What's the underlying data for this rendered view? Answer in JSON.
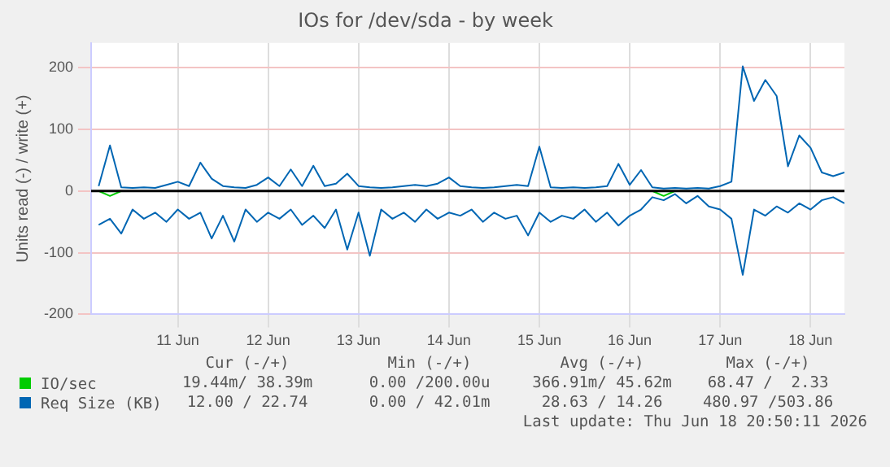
{
  "chart_data": {
    "type": "line",
    "title": "IOs for /dev/sda - by week",
    "ylabel": "Units read (-) / write (+)",
    "x": [
      "2026-06-10T15:00",
      "2026-06-10T18:00",
      "2026-06-10T21:00",
      "2026-06-11T00:00",
      "2026-06-11T03:00",
      "2026-06-11T06:00",
      "2026-06-11T09:00",
      "2026-06-11T12:00",
      "2026-06-11T15:00",
      "2026-06-11T18:00",
      "2026-06-11T21:00",
      "2026-06-12T00:00",
      "2026-06-12T03:00",
      "2026-06-12T06:00",
      "2026-06-12T09:00",
      "2026-06-12T12:00",
      "2026-06-12T15:00",
      "2026-06-12T18:00",
      "2026-06-12T21:00",
      "2026-06-13T00:00",
      "2026-06-13T03:00",
      "2026-06-13T06:00",
      "2026-06-13T09:00",
      "2026-06-13T12:00",
      "2026-06-13T15:00",
      "2026-06-13T18:00",
      "2026-06-13T21:00",
      "2026-06-14T00:00",
      "2026-06-14T03:00",
      "2026-06-14T06:00",
      "2026-06-14T09:00",
      "2026-06-14T12:00",
      "2026-06-14T15:00",
      "2026-06-14T18:00",
      "2026-06-14T21:00",
      "2026-06-15T00:00",
      "2026-06-15T03:00",
      "2026-06-15T06:00",
      "2026-06-15T09:00",
      "2026-06-15T12:00",
      "2026-06-15T15:00",
      "2026-06-15T18:00",
      "2026-06-15T21:00",
      "2026-06-16T00:00",
      "2026-06-16T03:00",
      "2026-06-16T06:00",
      "2026-06-16T09:00",
      "2026-06-16T12:00",
      "2026-06-16T15:00",
      "2026-06-16T18:00",
      "2026-06-16T21:00",
      "2026-06-17T00:00",
      "2026-06-17T03:00",
      "2026-06-17T06:00",
      "2026-06-17T09:00",
      "2026-06-17T12:00",
      "2026-06-17T15:00",
      "2026-06-17T18:00",
      "2026-06-17T21:00",
      "2026-06-18T00:00",
      "2026-06-18T03:00",
      "2026-06-18T06:00",
      "2026-06-18T09:00",
      "2026-06-18T12:00",
      "2026-06-18T15:00",
      "2026-06-18T18:00",
      "2026-06-18T21:00"
    ],
    "series": [
      {
        "name": "IO/sec",
        "color": "#00cc00",
        "values": [
          0,
          -8,
          0,
          null,
          null,
          null,
          null,
          null,
          null,
          null,
          null,
          null,
          null,
          null,
          null,
          null,
          null,
          null,
          null,
          null,
          null,
          null,
          null,
          null,
          null,
          null,
          null,
          null,
          null,
          null,
          null,
          null,
          null,
          null,
          null,
          null,
          null,
          null,
          null,
          null,
          null,
          null,
          null,
          null,
          null,
          null,
          null,
          null,
          null,
          0,
          -8,
          0,
          null,
          null,
          null,
          null,
          null,
          null,
          null,
          null,
          null,
          null,
          null,
          null,
          null,
          null,
          null
        ]
      },
      {
        "name": "Req Size (KB)",
        "color": "#0066b3",
        "values": [
          -55,
          -45,
          -69,
          -30,
          -45,
          -35,
          -50,
          -30,
          -45,
          -35,
          -77,
          -40,
          -82,
          -30,
          -50,
          -35,
          -45,
          -30,
          -55,
          -40,
          -60,
          -30,
          -95,
          -35,
          -105,
          -30,
          -45,
          -35,
          -50,
          -30,
          -45,
          -35,
          -40,
          -30,
          -50,
          -35,
          -45,
          -40,
          -72,
          -35,
          -50,
          -40,
          -45,
          -30,
          -50,
          -35,
          -56,
          -40,
          -30,
          -10,
          -15,
          -5,
          -20,
          -8,
          -25,
          -30,
          -45,
          -136,
          -30,
          -40,
          -25,
          -35,
          -20,
          -30,
          -15,
          -10,
          -20
        ]
      },
      {
        "color": "#0066b3",
        "values": [
          8,
          74,
          6,
          5,
          6,
          5,
          10,
          15,
          8,
          46,
          20,
          8,
          6,
          5,
          10,
          22,
          8,
          35,
          8,
          41,
          8,
          12,
          28,
          8,
          6,
          5,
          6,
          8,
          10,
          8,
          12,
          22,
          8,
          6,
          5,
          6,
          8,
          10,
          8,
          72,
          6,
          5,
          6,
          5,
          6,
          8,
          44,
          10,
          34,
          6,
          4,
          5,
          4,
          5,
          4,
          8,
          15,
          202,
          146,
          180,
          154,
          40,
          90,
          70,
          30,
          24,
          30
        ]
      }
    ],
    "xlim": [
      "2026-06-10T13:00",
      "2026-06-18T21:00"
    ],
    "xticks": [
      {
        "value": "2026-06-11T12:00",
        "label": "11 Jun"
      },
      {
        "value": "2026-06-12T12:00",
        "label": "12 Jun"
      },
      {
        "value": "2026-06-13T12:00",
        "label": "13 Jun"
      },
      {
        "value": "2026-06-14T12:00",
        "label": "14 Jun"
      },
      {
        "value": "2026-06-15T12:00",
        "label": "15 Jun"
      },
      {
        "value": "2026-06-16T12:00",
        "label": "16 Jun"
      },
      {
        "value": "2026-06-17T12:00",
        "label": "17 Jun"
      },
      {
        "value": "2026-06-18T12:00",
        "label": "18 Jun"
      }
    ],
    "ylim": [
      -200,
      240
    ],
    "yticks": [
      -200,
      -100,
      0,
      100,
      200
    ],
    "ref_lines": [
      {
        "axis": "y",
        "value": 0,
        "color": "#000000"
      }
    ],
    "grid": true,
    "legend": "bottom",
    "annotations": [
      "Cur (-/+)",
      "Min (-/+)",
      "Avg (-/+)",
      "Max (-/+)",
      "19.44m/ 38.39m",
      "0.00 /200.00u",
      "366.91m/ 45.62m",
      "68.47 /  2.33",
      "12.00 / 22.74",
      "0.00 / 42.01m",
      "28.63 / 14.26",
      "480.97 /503.86",
      "Last update: Thu Jun 18 20:50:11 2026"
    ]
  }
}
